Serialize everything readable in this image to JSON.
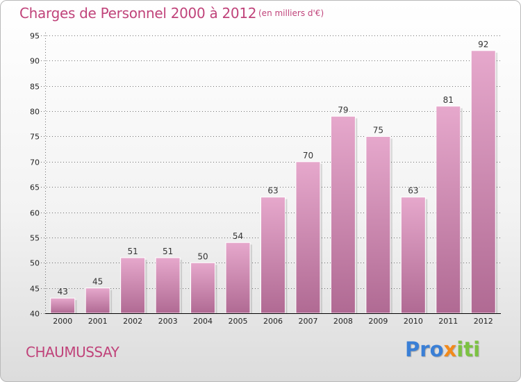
{
  "header": {
    "title": "Charges de Personnel 2000 à 2012",
    "subtitle": "(en milliers d'€)"
  },
  "footer": {
    "place": "CHAUMUSSAY",
    "logo_letters": [
      {
        "ch": "P",
        "color": "#3a7fd6"
      },
      {
        "ch": "r",
        "color": "#3a7fd6"
      },
      {
        "ch": "o",
        "color": "#3a7fd6"
      },
      {
        "ch": "x",
        "color": "#f28a1b"
      },
      {
        "ch": "i",
        "color": "#7cc242"
      },
      {
        "ch": "t",
        "color": "#7cc242"
      },
      {
        "ch": "i",
        "color": "#7cc242"
      }
    ]
  },
  "colors": {
    "accent": "#c0437a",
    "bar_top": "#e6a8cc",
    "bar_bottom": "#b06a93",
    "grid": "#000000"
  },
  "chart_data": {
    "type": "bar",
    "title": "Charges de Personnel 2000 à 2012",
    "subtitle": "(en milliers d'€)",
    "xlabel": "",
    "ylabel": "",
    "categories": [
      "2000",
      "2001",
      "2002",
      "2003",
      "2004",
      "2005",
      "2006",
      "2007",
      "2008",
      "2009",
      "2010",
      "2011",
      "2012"
    ],
    "values": [
      43,
      45,
      51,
      51,
      50,
      54,
      63,
      70,
      79,
      75,
      63,
      81,
      92
    ],
    "ylim": [
      40,
      95
    ],
    "yticks": [
      40,
      45,
      50,
      55,
      60,
      65,
      70,
      75,
      80,
      85,
      90,
      95
    ],
    "grid": true,
    "data_labels": true
  }
}
